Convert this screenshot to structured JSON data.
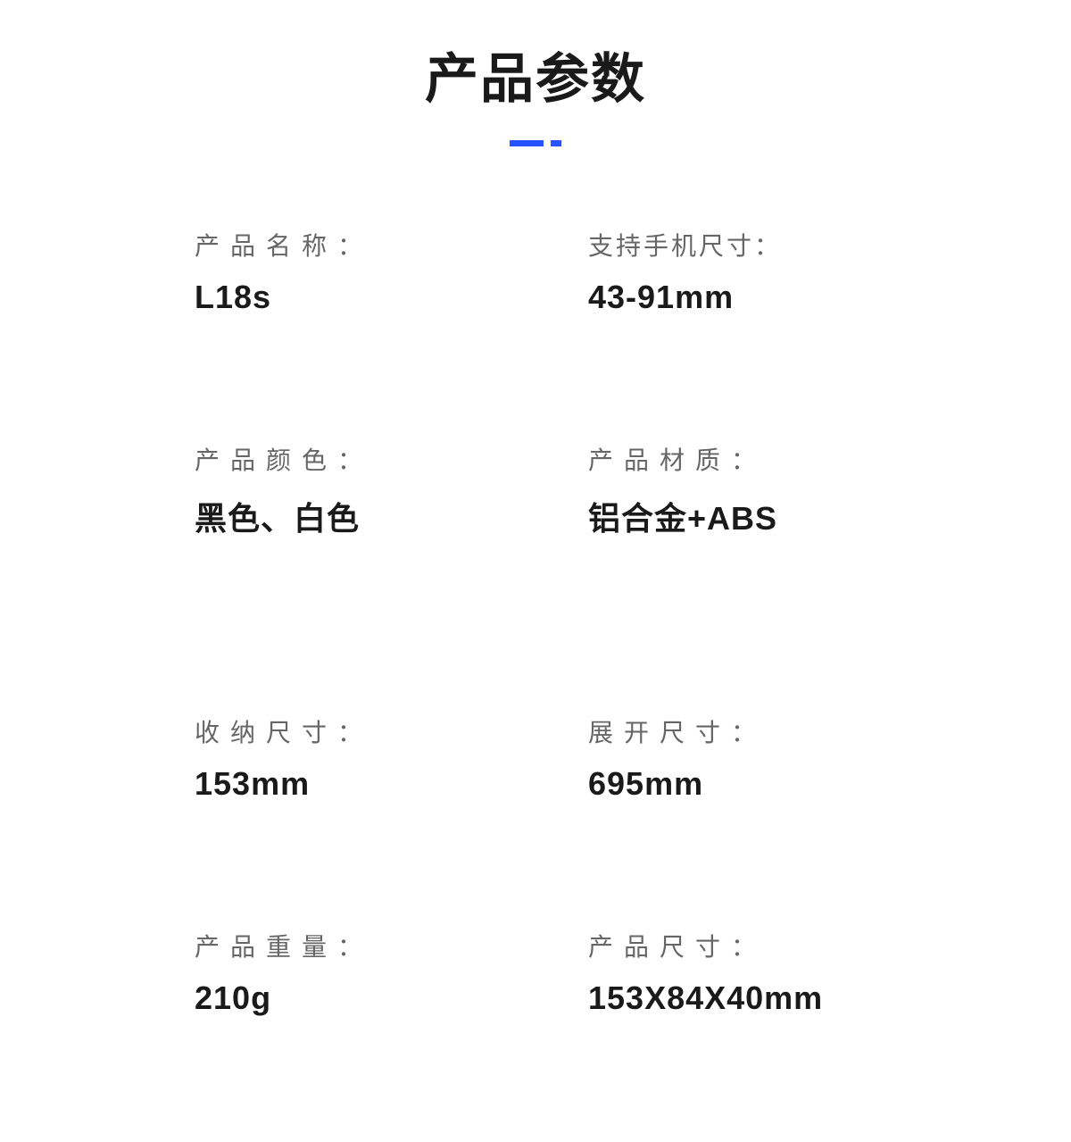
{
  "page": {
    "title": "产品参数",
    "background_color": "#ffffff",
    "accent_color": "#2952ff",
    "title_color": "#1a1a1a",
    "label_color": "#666666",
    "value_color": "#1a1a1a",
    "title_fontsize": 60,
    "label_fontsize": 28,
    "value_fontsize": 36
  },
  "specs": [
    {
      "label": "产品名称：",
      "value": "L18s",
      "label_spacing": "wide"
    },
    {
      "label": "支持手机尺寸：",
      "value": "43-91mm",
      "label_spacing": "tight"
    },
    {
      "label": "产品颜色：",
      "value": "黑色、白色",
      "label_spacing": "wide"
    },
    {
      "label": "产品材质：",
      "value": "铝合金+ABS",
      "label_spacing": "wide"
    },
    {
      "label": "收纳尺寸：",
      "value": "153mm",
      "label_spacing": "wide"
    },
    {
      "label": "展开尺寸：",
      "value": "695mm",
      "label_spacing": "wide"
    },
    {
      "label": "产品重量：",
      "value": "210g",
      "label_spacing": "wide"
    },
    {
      "label": "产品尺寸：",
      "value": "153X84X40mm",
      "label_spacing": "wide"
    }
  ]
}
